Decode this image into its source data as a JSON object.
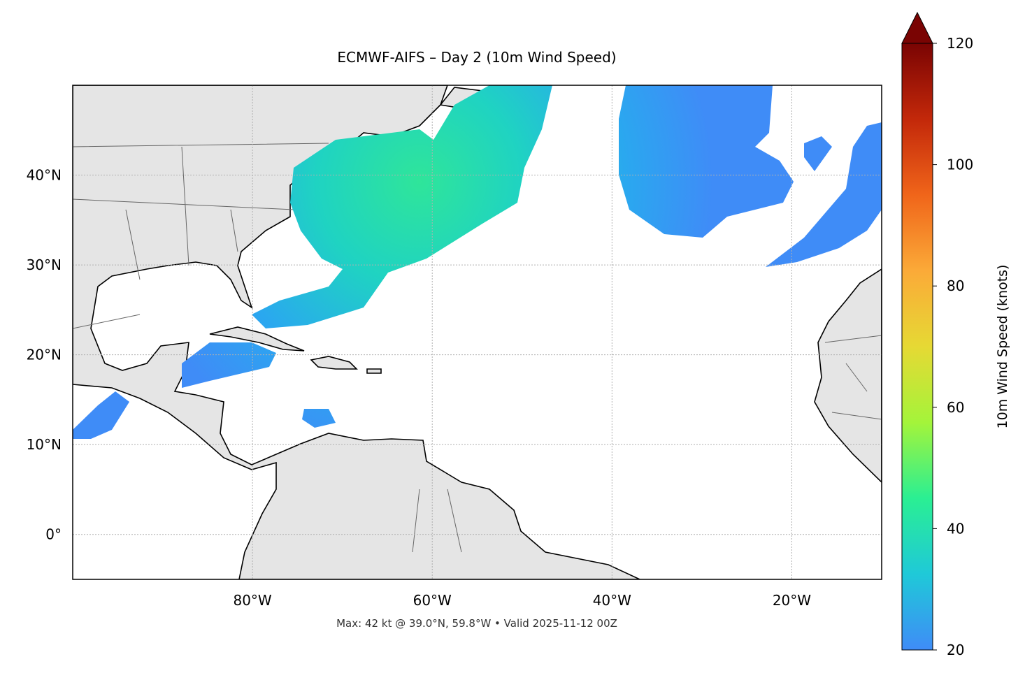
{
  "chart_data": {
    "type": "map",
    "title": "ECMWF-AIFS – Day 2 (10m Wind Speed)",
    "footer": "Max: 42 kt @ 39.0°N, 59.8°W • Valid 2025-11-12 00Z",
    "xlim": [
      -100,
      -10
    ],
    "ylim": [
      -5,
      50
    ],
    "xticks": [
      {
        "value": -80,
        "label": "80°W"
      },
      {
        "value": -60,
        "label": "60°W"
      },
      {
        "value": -40,
        "label": "40°W"
      },
      {
        "value": -20,
        "label": "20°W"
      }
    ],
    "yticks": [
      {
        "value": 0,
        "label": "0°"
      },
      {
        "value": 10,
        "label": "10°N"
      },
      {
        "value": 20,
        "label": "20°N"
      },
      {
        "value": 30,
        "label": "30°N"
      },
      {
        "value": 40,
        "label": "40°N"
      }
    ],
    "grid": true,
    "colorbar": {
      "label": "10m Wind Speed (knots)",
      "lim": [
        20,
        120
      ],
      "ticks": [
        20,
        40,
        60,
        80,
        100,
        120
      ],
      "extend": "max",
      "colors": [
        "#3f8cf7",
        "#1fc9d8",
        "#2aef93",
        "#a4f43a",
        "#e6d934",
        "#fbaa38",
        "#f0651a",
        "#c3280a",
        "#7a0403"
      ]
    }
  }
}
